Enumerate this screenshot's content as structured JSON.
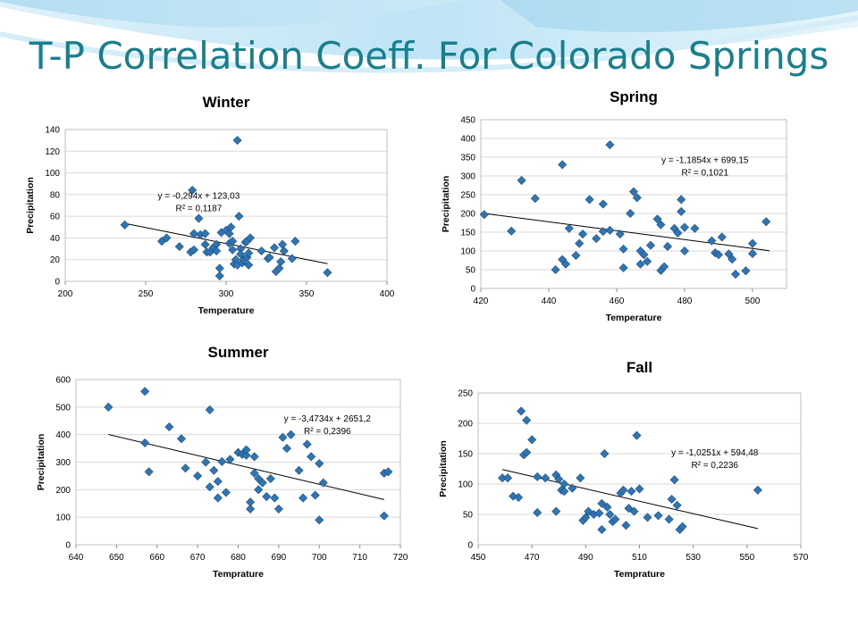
{
  "slide": {
    "title": "T-P Correlation Coeff. For Colorado Springs"
  },
  "colors": {
    "title": "#1a7f8c",
    "marker": "#2e75b6",
    "marker_stroke": "#1f4e79",
    "trendline": "#000000",
    "gridline": "#d9d9d9"
  },
  "chart_data": [
    {
      "type": "scatter",
      "title": "Winter",
      "xlabel": "Temperature",
      "ylabel": "Precipitation",
      "xlim": [
        200,
        400
      ],
      "ylim": [
        0,
        140
      ],
      "xticks": [
        200,
        250,
        300,
        350,
        400
      ],
      "yticks": [
        0,
        20,
        40,
        60,
        80,
        100,
        120,
        140
      ],
      "grid": "horizontal",
      "marker": "diamond",
      "annotation": {
        "equation": "y = -0,294x + 123,03",
        "r2": "R² = 0,1187",
        "at": [
          283,
          76
        ]
      },
      "trendline": {
        "x": [
          237,
          363
        ],
        "y": [
          53.4,
          16.3
        ]
      },
      "points": [
        [
          237,
          52
        ],
        [
          260,
          37
        ],
        [
          263,
          40
        ],
        [
          271,
          32
        ],
        [
          278,
          27
        ],
        [
          279,
          84
        ],
        [
          280,
          29
        ],
        [
          280,
          44
        ],
        [
          283,
          58
        ],
        [
          284,
          43
        ],
        [
          287,
          44
        ],
        [
          287,
          34
        ],
        [
          288,
          27
        ],
        [
          290,
          27
        ],
        [
          292,
          31
        ],
        [
          294,
          34
        ],
        [
          294,
          28
        ],
        [
          296,
          5
        ],
        [
          296,
          12
        ],
        [
          297,
          45
        ],
        [
          300,
          47
        ],
        [
          302,
          35
        ],
        [
          302,
          44
        ],
        [
          303,
          50
        ],
        [
          304,
          29
        ],
        [
          304,
          37
        ],
        [
          305,
          16
        ],
        [
          306,
          20
        ],
        [
          307,
          15
        ],
        [
          308,
          60
        ],
        [
          309,
          30
        ],
        [
          309,
          25
        ],
        [
          310,
          17
        ],
        [
          311,
          20
        ],
        [
          312,
          36
        ],
        [
          313,
          22
        ],
        [
          313,
          37
        ],
        [
          314,
          15
        ],
        [
          314,
          26
        ],
        [
          315,
          40
        ],
        [
          322,
          28
        ],
        [
          326,
          21
        ],
        [
          327,
          22
        ],
        [
          330,
          31
        ],
        [
          331,
          9
        ],
        [
          333,
          12
        ],
        [
          334,
          18
        ],
        [
          335,
          34
        ],
        [
          336,
          28
        ],
        [
          341,
          21
        ],
        [
          343,
          37
        ],
        [
          363,
          8
        ],
        [
          307,
          130
        ]
      ]
    },
    {
      "type": "scatter",
      "title": "Spring",
      "xlabel": "Temperature",
      "ylabel": "Precipitation",
      "xlim": [
        420,
        510
      ],
      "ylim": [
        0,
        450
      ],
      "xticks": [
        420,
        440,
        460,
        480,
        500
      ],
      "yticks": [
        0,
        50,
        100,
        150,
        200,
        250,
        300,
        350,
        400,
        450
      ],
      "grid": "horizontal",
      "marker": "diamond",
      "annotation": {
        "equation": "y = -1,1854x + 699,15",
        "r2": "R² = 0,1021",
        "at": [
          486,
          335
        ]
      },
      "trendline": {
        "x": [
          420,
          505
        ],
        "y": [
          201.3,
          100.6
        ]
      },
      "points": [
        [
          421,
          197
        ],
        [
          429,
          153
        ],
        [
          432,
          288
        ],
        [
          436,
          240
        ],
        [
          442,
          50
        ],
        [
          444,
          330
        ],
        [
          444,
          77
        ],
        [
          445,
          65
        ],
        [
          446,
          160
        ],
        [
          448,
          88
        ],
        [
          449,
          120
        ],
        [
          450,
          145
        ],
        [
          452,
          237
        ],
        [
          454,
          133
        ],
        [
          456,
          152
        ],
        [
          456,
          225
        ],
        [
          458,
          155
        ],
        [
          458,
          383
        ],
        [
          461,
          145
        ],
        [
          462,
          55
        ],
        [
          462,
          105
        ],
        [
          464,
          200
        ],
        [
          465,
          258
        ],
        [
          466,
          242
        ],
        [
          467,
          65
        ],
        [
          467,
          100
        ],
        [
          468,
          90
        ],
        [
          469,
          72
        ],
        [
          470,
          115
        ],
        [
          472,
          185
        ],
        [
          473,
          48
        ],
        [
          473,
          170
        ],
        [
          474,
          58
        ],
        [
          475,
          112
        ],
        [
          477,
          160
        ],
        [
          478,
          148
        ],
        [
          479,
          205
        ],
        [
          479,
          237
        ],
        [
          480,
          163
        ],
        [
          480,
          100
        ],
        [
          483,
          160
        ],
        [
          488,
          127
        ],
        [
          489,
          95
        ],
        [
          490,
          90
        ],
        [
          491,
          137
        ],
        [
          493,
          92
        ],
        [
          494,
          78
        ],
        [
          495,
          38
        ],
        [
          498,
          47
        ],
        [
          500,
          120
        ],
        [
          500,
          93
        ],
        [
          504,
          178
        ]
      ]
    },
    {
      "type": "scatter",
      "title": "Summer",
      "xlabel": "Temprature",
      "ylabel": "Precipitation",
      "xlim": [
        640,
        720
      ],
      "ylim": [
        0,
        600
      ],
      "xticks": [
        640,
        650,
        660,
        670,
        680,
        690,
        700,
        710,
        720
      ],
      "yticks": [
        0,
        100,
        200,
        300,
        400,
        500,
        600
      ],
      "grid": "horizontal",
      "marker": "diamond",
      "annotation": {
        "equation": "y = -3,4734x + 2651,2",
        "r2": "R² = 0,2396",
        "at": [
          702,
          447
        ]
      },
      "trendline": {
        "x": [
          648,
          716
        ],
        "y": [
          400.4,
          164.2
        ]
      },
      "points": [
        [
          648,
          500
        ],
        [
          657,
          557
        ],
        [
          657,
          370
        ],
        [
          658,
          265
        ],
        [
          663,
          428
        ],
        [
          666,
          385
        ],
        [
          667,
          278
        ],
        [
          670,
          250
        ],
        [
          672,
          300
        ],
        [
          673,
          490
        ],
        [
          673,
          210
        ],
        [
          674,
          270
        ],
        [
          675,
          230
        ],
        [
          675,
          170
        ],
        [
          676,
          302
        ],
        [
          677,
          190
        ],
        [
          678,
          310
        ],
        [
          680,
          335
        ],
        [
          681,
          328
        ],
        [
          682,
          325
        ],
        [
          682,
          345
        ],
        [
          683,
          155
        ],
        [
          683,
          130
        ],
        [
          684,
          260
        ],
        [
          684,
          320
        ],
        [
          685,
          240
        ],
        [
          685,
          200
        ],
        [
          686,
          225
        ],
        [
          687,
          175
        ],
        [
          688,
          240
        ],
        [
          689,
          170
        ],
        [
          690,
          130
        ],
        [
          691,
          390
        ],
        [
          692,
          350
        ],
        [
          693,
          400
        ],
        [
          695,
          270
        ],
        [
          696,
          170
        ],
        [
          697,
          365
        ],
        [
          698,
          320
        ],
        [
          699,
          180
        ],
        [
          700,
          295
        ],
        [
          701,
          225
        ],
        [
          700,
          90
        ],
        [
          716,
          260
        ],
        [
          717,
          265
        ],
        [
          716,
          105
        ]
      ]
    },
    {
      "type": "scatter",
      "title": "Fall",
      "xlabel": "Temprature",
      "ylabel": "Precipitation",
      "xlim": [
        450,
        570
      ],
      "ylim": [
        0,
        250
      ],
      "xticks": [
        450,
        470,
        490,
        510,
        530,
        550,
        570
      ],
      "yticks": [
        0,
        50,
        100,
        150,
        200,
        250
      ],
      "grid": "horizontal",
      "marker": "diamond",
      "annotation": {
        "equation": "y = -1,0251x + 594,48",
        "r2": "R² = 0,2236",
        "at": [
          538,
          147
        ]
      },
      "trendline": {
        "x": [
          459,
          554
        ],
        "y": [
          123.9,
          26.6
        ]
      },
      "points": [
        [
          459,
          110
        ],
        [
          461,
          110
        ],
        [
          463,
          80
        ],
        [
          465,
          78
        ],
        [
          466,
          220
        ],
        [
          467,
          148
        ],
        [
          468,
          205
        ],
        [
          468,
          152
        ],
        [
          470,
          173
        ],
        [
          472,
          112
        ],
        [
          472,
          53
        ],
        [
          475,
          110
        ],
        [
          479,
          55
        ],
        [
          479,
          115
        ],
        [
          480,
          108
        ],
        [
          481,
          90
        ],
        [
          482,
          88
        ],
        [
          482,
          100
        ],
        [
          485,
          93
        ],
        [
          488,
          110
        ],
        [
          489,
          40
        ],
        [
          490,
          45
        ],
        [
          491,
          55
        ],
        [
          493,
          50
        ],
        [
          495,
          52
        ],
        [
          496,
          25
        ],
        [
          496,
          68
        ],
        [
          497,
          150
        ],
        [
          498,
          62
        ],
        [
          499,
          50
        ],
        [
          500,
          38
        ],
        [
          501,
          42
        ],
        [
          503,
          85
        ],
        [
          504,
          90
        ],
        [
          505,
          32
        ],
        [
          506,
          60
        ],
        [
          507,
          88
        ],
        [
          508,
          55
        ],
        [
          509,
          180
        ],
        [
          510,
          92
        ],
        [
          513,
          45
        ],
        [
          517,
          48
        ],
        [
          521,
          42
        ],
        [
          522,
          75
        ],
        [
          523,
          107
        ],
        [
          524,
          65
        ],
        [
          525,
          25
        ],
        [
          526,
          30
        ],
        [
          554,
          90
        ]
      ]
    }
  ]
}
